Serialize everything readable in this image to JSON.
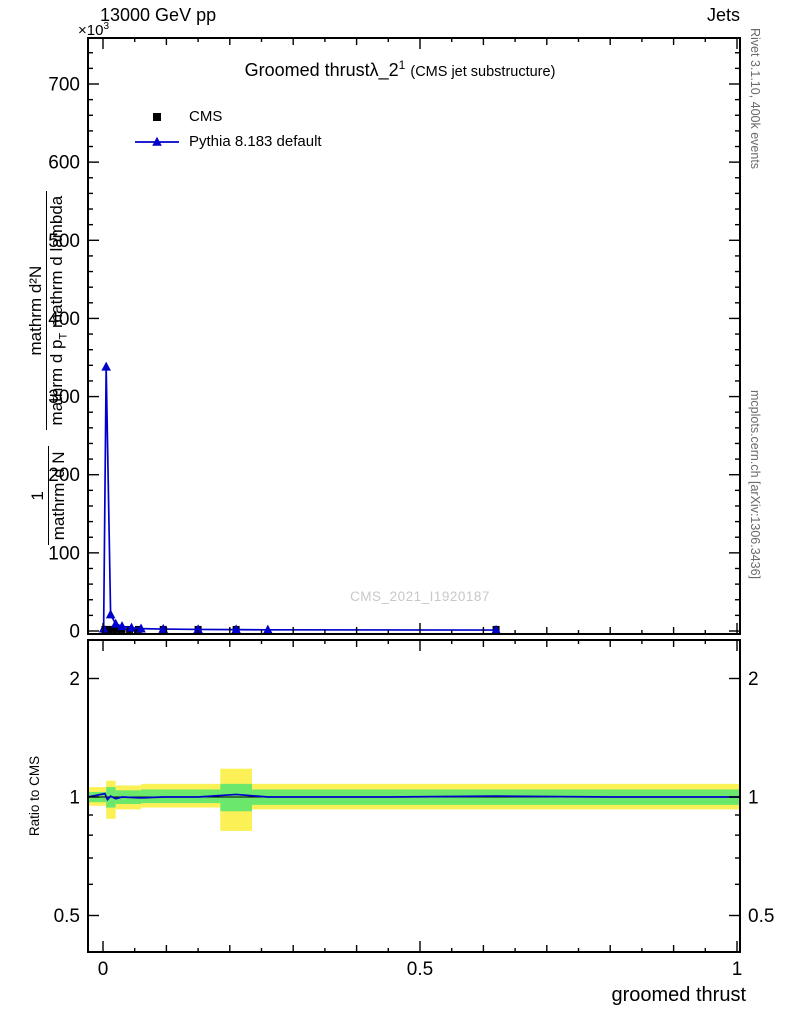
{
  "header": {
    "beam_label": "13000 GeV pp",
    "category_label": "Jets"
  },
  "scale_note": {
    "base": "×10",
    "exp": "3"
  },
  "title": {
    "main": "Groomed thrustλ_2",
    "sup": "1",
    "paren": "(CMS jet substructure)"
  },
  "legend": {
    "items": [
      {
        "label": "CMS"
      },
      {
        "label": "Pythia 8.183 default"
      }
    ]
  },
  "ylabel": {
    "f1_num": "1",
    "f1_den": "mathrm d N",
    "f2_num": "mathrm d²N",
    "f2_den_a": "mathrm d p",
    "f2_den_sub": "T",
    "f2_den_b": " mathrm d lambda"
  },
  "ratio_ylabel": "Ratio to CMS",
  "xlabel": "groomed thrust",
  "watermark": "CMS_2021_I1920187",
  "side_notes": {
    "top": "Rivet 3.1.10,  400k events",
    "bottom": "mcplots.cern.ch [arXiv:1306.3436]"
  },
  "colors": {
    "pythia_blue": "#0000cc",
    "cms_black": "#000000",
    "band_yellow": "#fbf157",
    "band_green": "#6be86b",
    "watermark_gray": "#c8c8c8",
    "note_gray": "#6b6b6b"
  },
  "chart_data": {
    "type": "line",
    "title": "Groomed thrust λ_2^1 (CMS jet substructure)",
    "xlabel": "groomed thrust",
    "xlim": [
      -0.024,
      1.005
    ],
    "xticks": [
      0,
      0.5,
      1
    ],
    "xtick_labels": [
      "0",
      "0.5",
      "1"
    ],
    "main_panel": {
      "ylim": [
        0,
        760
      ],
      "yticks": [
        0,
        100,
        200,
        300,
        400,
        500,
        600,
        700
      ],
      "y_unit_multiplier": 1000,
      "grid": false,
      "legend_position": "top-left",
      "series": [
        {
          "name": "CMS",
          "marker": "square",
          "line": false,
          "color_key": "cms_black",
          "points": [
            [
              0.003,
              2
            ],
            [
              0.008,
              2
            ],
            [
              0.014,
              2
            ],
            [
              0.021,
              2
            ],
            [
              0.03,
              2
            ],
            [
              0.042,
              2
            ],
            [
              0.056,
              2
            ],
            [
              0.095,
              2
            ],
            [
              0.15,
              2
            ],
            [
              0.21,
              2
            ],
            [
              0.62,
              2
            ]
          ]
        },
        {
          "name": "Pythia 8.183 default",
          "marker": "triangle",
          "line": true,
          "color_key": "pythia_blue",
          "points": [
            [
              0.001,
              3
            ],
            [
              0.005,
              338
            ],
            [
              0.012,
              21
            ],
            [
              0.02,
              9
            ],
            [
              0.03,
              6
            ],
            [
              0.045,
              4
            ],
            [
              0.06,
              3
            ],
            [
              0.095,
              2.5
            ],
            [
              0.15,
              2
            ],
            [
              0.21,
              1.8
            ],
            [
              0.26,
              1.5
            ],
            [
              0.62,
              1.2
            ]
          ]
        }
      ]
    },
    "ratio_panel": {
      "ylabel": "Ratio to CMS",
      "yscale": "log",
      "ylim": [
        0.4,
        2.5
      ],
      "yticks": [
        0.5,
        1,
        2
      ],
      "ytick_labels": [
        "0.5",
        "1",
        "2"
      ],
      "yminors": [
        0.6,
        0.7,
        0.8,
        0.9
      ],
      "reference_line": 1,
      "bands": [
        {
          "x0": -0.024,
          "x1": 0.005,
          "yellow": [
            0.95,
            1.06
          ],
          "green": [
            0.97,
            1.03
          ]
        },
        {
          "x0": 0.005,
          "x1": 0.02,
          "yellow": [
            0.88,
            1.1
          ],
          "green": [
            0.94,
            1.06
          ]
        },
        {
          "x0": 0.02,
          "x1": 0.06,
          "yellow": [
            0.93,
            1.07
          ],
          "green": [
            0.96,
            1.04
          ]
        },
        {
          "x0": 0.06,
          "x1": 0.185,
          "yellow": [
            0.94,
            1.08
          ],
          "green": [
            0.965,
            1.045
          ]
        },
        {
          "x0": 0.185,
          "x1": 0.235,
          "yellow": [
            0.82,
            1.18
          ],
          "green": [
            0.92,
            1.08
          ]
        },
        {
          "x0": 0.235,
          "x1": 1.005,
          "yellow": [
            0.93,
            1.08
          ],
          "green": [
            0.955,
            1.045
          ]
        }
      ],
      "model_line": {
        "name": "Pythia 8.183 default",
        "color_key": "pythia_blue",
        "points": [
          [
            -0.024,
            1.0
          ],
          [
            0.003,
            1.02
          ],
          [
            0.007,
            0.985
          ],
          [
            0.012,
            1.005
          ],
          [
            0.02,
            0.99
          ],
          [
            0.03,
            1.0
          ],
          [
            0.06,
            0.995
          ],
          [
            0.095,
            1.0
          ],
          [
            0.15,
            1.0
          ],
          [
            0.21,
            1.015
          ],
          [
            0.26,
            1.0
          ],
          [
            0.45,
            1.0
          ],
          [
            0.62,
            1.005
          ],
          [
            0.8,
            1.0
          ],
          [
            1.005,
            1.0
          ]
        ]
      }
    }
  }
}
